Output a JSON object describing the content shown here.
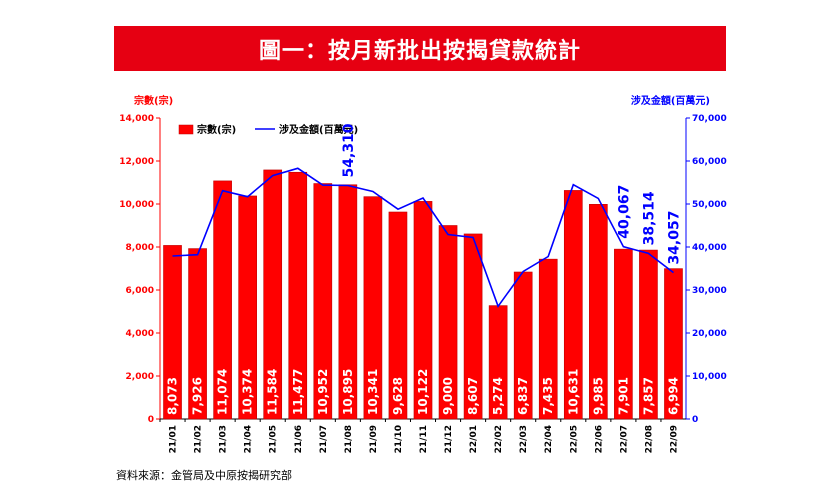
{
  "colors": {
    "banner": "#e60012",
    "bar": "#ff0000",
    "bar_edge": "#c00000",
    "line": "#0000ff",
    "left_axis": "#ff0000",
    "right_axis": "#0000ff",
    "bar_label": "#ffffff"
  },
  "source_note": "資料來源：金管局及中原按揭研究部",
  "chart_data": {
    "type": "bar",
    "title": "圖一：按月新批出按揭貸款統計",
    "categories": [
      "21/01",
      "21/02",
      "21/03",
      "21/04",
      "21/05",
      "21/06",
      "21/07",
      "21/08",
      "21/09",
      "21/10",
      "21/11",
      "21/12",
      "22/01",
      "22/02",
      "22/03",
      "22/04",
      "22/05",
      "22/06",
      "22/07",
      "22/08",
      "22/09"
    ],
    "left_axis": {
      "label": "宗數(宗)",
      "ylim": [
        0,
        14000
      ],
      "ticks": [
        "0",
        "2,000",
        "4,000",
        "6,000",
        "8,000",
        "10,000",
        "12,000",
        "14,000"
      ]
    },
    "right_axis": {
      "label": "涉及金額(百萬元)",
      "ylim": [
        0,
        70000
      ],
      "ticks": [
        "0",
        "10,000",
        "20,000",
        "30,000",
        "40,000",
        "50,000",
        "60,000",
        "70,000"
      ]
    },
    "series": [
      {
        "name": "宗數(宗)",
        "type": "bar",
        "axis": "left",
        "values": [
          8073,
          7926,
          11074,
          10374,
          11584,
          11477,
          10952,
          10895,
          10341,
          9628,
          10122,
          9000,
          8607,
          5274,
          6837,
          7435,
          10631,
          9985,
          7901,
          7857,
          6994
        ],
        "labels": [
          "8,073",
          "7,926",
          "11,074",
          "10,374",
          "11,584",
          "11,477",
          "10,952",
          "10,895",
          "10,341",
          "9,628",
          "10,122",
          "9,000",
          "8,607",
          "5,274",
          "6,837",
          "7,435",
          "10,631",
          "9,985",
          "7,901",
          "7,857",
          "6,994"
        ]
      },
      {
        "name": "涉及金額(百萬元)",
        "type": "line",
        "axis": "right",
        "values": [
          37900,
          38200,
          53100,
          51700,
          56600,
          58300,
          54400,
          54310,
          52900,
          48800,
          51400,
          42900,
          42200,
          26200,
          34300,
          37800,
          54500,
          51300,
          40067,
          38514,
          34057
        ]
      }
    ],
    "line_annotations": [
      {
        "index": 7,
        "text": "54,310"
      },
      {
        "index": 18,
        "text": "40,067"
      },
      {
        "index": 19,
        "text": "38,514"
      },
      {
        "index": 20,
        "text": "34,057"
      }
    ],
    "legend_position": "top-left",
    "grid": false
  }
}
